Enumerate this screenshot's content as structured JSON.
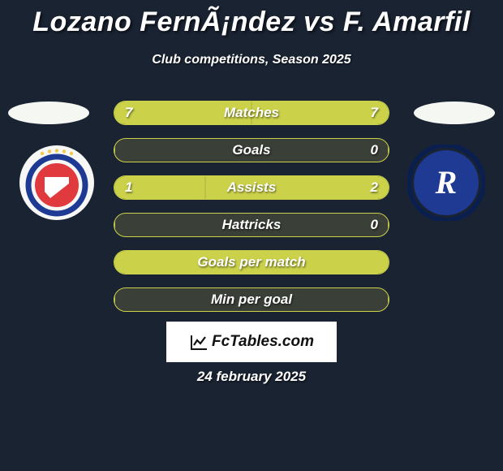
{
  "title": "Lozano FernÃ¡ndez vs F. Amarfil",
  "subtitle": "Club competitions, Season 2025",
  "date": "24 february 2025",
  "logo_text": "FcTables.com",
  "flags": {
    "left_background": "#f5f7f2",
    "right_background": "#f5f7f2"
  },
  "crests": {
    "left": {
      "bg": "#f7f7f5",
      "inner": "#e13a3e",
      "ring": "#1f3a93",
      "stars": "#f2c94c"
    },
    "right": {
      "bg": "#1f3a93",
      "inner": "#ffffff",
      "ring": "#0a1f4d"
    }
  },
  "bar_style": {
    "empty_color": "#3a3f37",
    "border_color": "#cbd24a",
    "left_fill_color": "#cbd24a",
    "right_fill_color": "#cbd24a",
    "label_fontsize": 17
  },
  "stats": [
    {
      "label": "Matches",
      "left_value": "7",
      "right_value": "7",
      "left_pct": 50,
      "right_pct": 50,
      "show_values": true
    },
    {
      "label": "Goals",
      "left_value": "",
      "right_value": "0",
      "left_pct": 0,
      "right_pct": 0,
      "show_values": true
    },
    {
      "label": "Assists",
      "left_value": "1",
      "right_value": "2",
      "left_pct": 33,
      "right_pct": 67,
      "show_values": true
    },
    {
      "label": "Hattricks",
      "left_value": "",
      "right_value": "0",
      "left_pct": 0,
      "right_pct": 0,
      "show_values": true
    },
    {
      "label": "Goals per match",
      "left_value": "",
      "right_value": "",
      "left_pct": 100,
      "right_pct": 0,
      "show_values": false
    },
    {
      "label": "Min per goal",
      "left_value": "",
      "right_value": "",
      "left_pct": 0,
      "right_pct": 0,
      "show_values": false
    }
  ]
}
